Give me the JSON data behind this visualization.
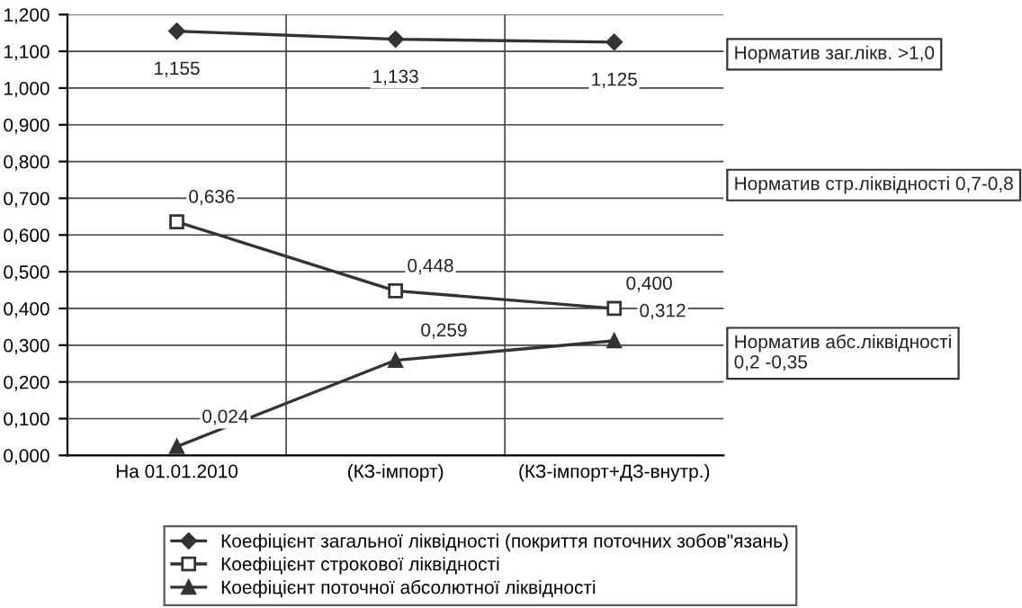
{
  "chart_data": {
    "type": "line",
    "categories": [
      "На 01.01.2010",
      "(КЗ-імпорт)",
      "(КЗ-імпорт+ДЗ-внутр.)"
    ],
    "series": [
      {
        "name": "Коефіцієнт загальної ліквідності (покриття поточних зобов\"язань)",
        "color": "#333333",
        "marker": "diamond",
        "values": [
          1.155,
          1.133,
          1.125
        ],
        "value_labels": [
          "1,155",
          "1,133",
          "1,125"
        ]
      },
      {
        "name": "Коефіцієнт строкової ліквідності",
        "color": "#333333",
        "marker": "square",
        "values": [
          0.636,
          0.448,
          0.4
        ],
        "value_labels": [
          "0,636",
          "0,448",
          "0,400"
        ]
      },
      {
        "name": "Коефіцієнт поточної абсолютної ліквідності",
        "color": "#333333",
        "marker": "triangle",
        "values": [
          0.024,
          0.259,
          0.312
        ],
        "value_labels": [
          "0,024",
          "0,259",
          "0,312"
        ]
      }
    ],
    "ylim": [
      0,
      1.2
    ],
    "yticks": [
      {
        "value": 0,
        "label": "0,000"
      },
      {
        "value": 0.1,
        "label": "0,100"
      },
      {
        "value": 0.2,
        "label": "0,200"
      },
      {
        "value": 0.3,
        "label": "0,300"
      },
      {
        "value": 0.4,
        "label": "0,400"
      },
      {
        "value": 0.5,
        "label": "0,500"
      },
      {
        "value": 0.6,
        "label": "0,600"
      },
      {
        "value": 0.7,
        "label": "0,700"
      },
      {
        "value": 0.8,
        "label": "0,800"
      },
      {
        "value": 0.9,
        "label": "0,900"
      },
      {
        "value": 1.0,
        "label": "1,000"
      },
      {
        "value": 1.1,
        "label": "1,100"
      },
      {
        "value": 1.2,
        "label": "1,200"
      }
    ],
    "annotations": [
      "Норматив заг.лікв. >1,0",
      "Норматив стр.ліквідності 0,7-0,8",
      "Норматив абс.ліквідності\n0,2 -0,35"
    ],
    "grid": true,
    "legend": "bottom",
    "line_style": "solid"
  }
}
